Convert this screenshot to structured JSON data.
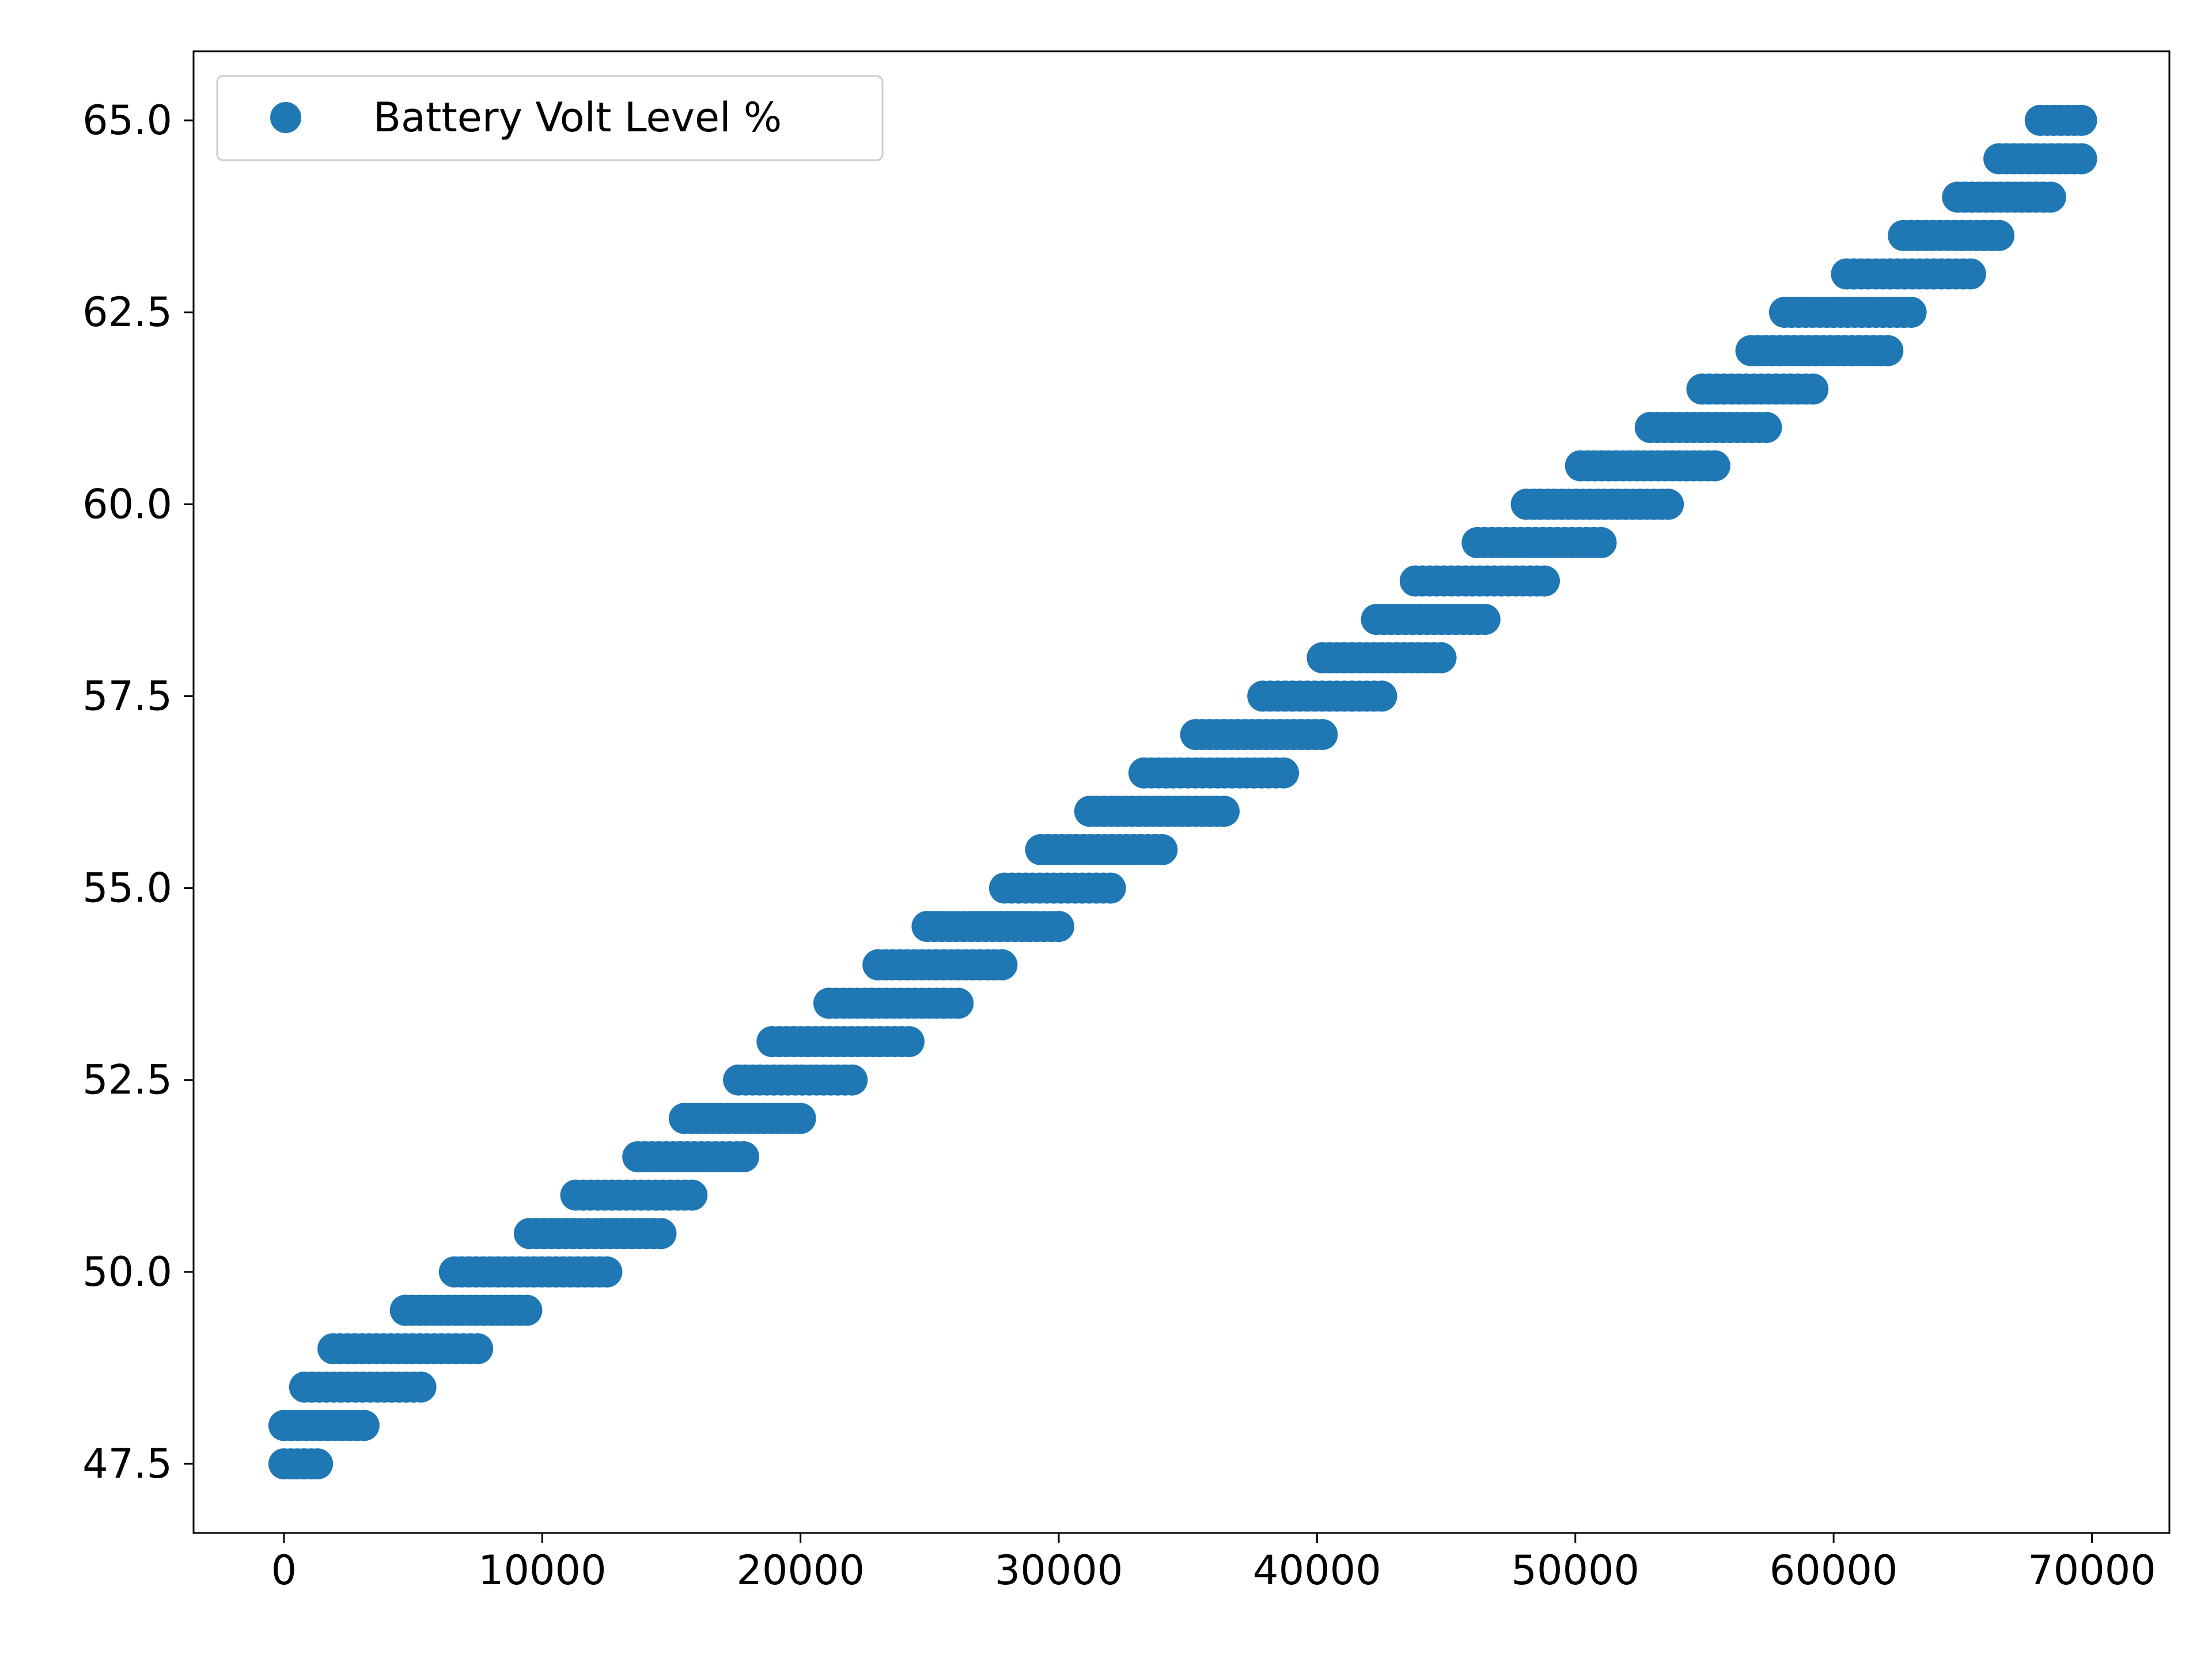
{
  "chart_data": {
    "type": "scatter",
    "title": "",
    "xlabel": "",
    "ylabel": "",
    "xlim": [
      -3500,
      73000
    ],
    "ylim": [
      46.6,
      65.9
    ],
    "x_ticks": [
      0,
      10000,
      20000,
      30000,
      40000,
      50000,
      60000,
      70000
    ],
    "x_tick_labels": [
      "0",
      "10000",
      "20000",
      "30000",
      "40000",
      "50000",
      "60000",
      "70000"
    ],
    "y_ticks": [
      47.5,
      50.0,
      52.5,
      55.0,
      57.5,
      60.0,
      62.5,
      65.0
    ],
    "y_tick_labels": [
      "47.5",
      "50.0",
      "52.5",
      "55.0",
      "57.5",
      "60.0",
      "62.5",
      "65.0"
    ],
    "grid": false,
    "legend": {
      "position": "top-left",
      "entries": [
        "Battery Volt Level %"
      ]
    },
    "series": [
      {
        "name": "Battery Volt Level %",
        "color": "#1f77b4",
        "marker": "circle",
        "level_ranges": [
          {
            "y": 47.5,
            "x_from": 0,
            "x_to": 1300
          },
          {
            "y": 48.0,
            "x_from": 0,
            "x_to": 3100
          },
          {
            "y": 48.5,
            "x_from": 800,
            "x_to": 5300
          },
          {
            "y": 49.0,
            "x_from": 1900,
            "x_to": 7500
          },
          {
            "y": 49.5,
            "x_from": 4700,
            "x_to": 9400
          },
          {
            "y": 50.0,
            "x_from": 6600,
            "x_to": 12500
          },
          {
            "y": 50.5,
            "x_from": 9500,
            "x_to": 14600
          },
          {
            "y": 51.0,
            "x_from": 11300,
            "x_to": 15800
          },
          {
            "y": 51.5,
            "x_from": 13700,
            "x_to": 17800
          },
          {
            "y": 52.0,
            "x_from": 15500,
            "x_to": 20000
          },
          {
            "y": 52.5,
            "x_from": 17600,
            "x_to": 22000
          },
          {
            "y": 53.0,
            "x_from": 18900,
            "x_to": 24200
          },
          {
            "y": 53.5,
            "x_from": 21100,
            "x_to": 26100
          },
          {
            "y": 54.0,
            "x_from": 23000,
            "x_to": 27800
          },
          {
            "y": 54.5,
            "x_from": 24900,
            "x_to": 30000
          },
          {
            "y": 55.0,
            "x_from": 27900,
            "x_to": 32000
          },
          {
            "y": 55.5,
            "x_from": 29300,
            "x_to": 34000
          },
          {
            "y": 56.0,
            "x_from": 31200,
            "x_to": 36400
          },
          {
            "y": 56.5,
            "x_from": 33300,
            "x_to": 38700
          },
          {
            "y": 57.0,
            "x_from": 35300,
            "x_to": 40200
          },
          {
            "y": 57.5,
            "x_from": 37900,
            "x_to": 42500
          },
          {
            "y": 58.0,
            "x_from": 40200,
            "x_to": 44800
          },
          {
            "y": 58.5,
            "x_from": 42300,
            "x_to": 46500
          },
          {
            "y": 59.0,
            "x_from": 43800,
            "x_to": 48800
          },
          {
            "y": 59.5,
            "x_from": 46200,
            "x_to": 51000
          },
          {
            "y": 60.0,
            "x_from": 48100,
            "x_to": 53600
          },
          {
            "y": 60.5,
            "x_from": 50200,
            "x_to": 55400
          },
          {
            "y": 61.0,
            "x_from": 52900,
            "x_to": 57400
          },
          {
            "y": 61.5,
            "x_from": 54900,
            "x_to": 59200
          },
          {
            "y": 62.0,
            "x_from": 56800,
            "x_to": 62100
          },
          {
            "y": 62.5,
            "x_from": 58100,
            "x_to": 63000
          },
          {
            "y": 63.0,
            "x_from": 60500,
            "x_to": 65300
          },
          {
            "y": 63.5,
            "x_from": 62700,
            "x_to": 66400
          },
          {
            "y": 64.0,
            "x_from": 64800,
            "x_to": 68400
          },
          {
            "y": 64.5,
            "x_from": 66400,
            "x_to": 69600
          },
          {
            "y": 65.0,
            "x_from": 68000,
            "x_to": 69600
          }
        ]
      }
    ]
  }
}
